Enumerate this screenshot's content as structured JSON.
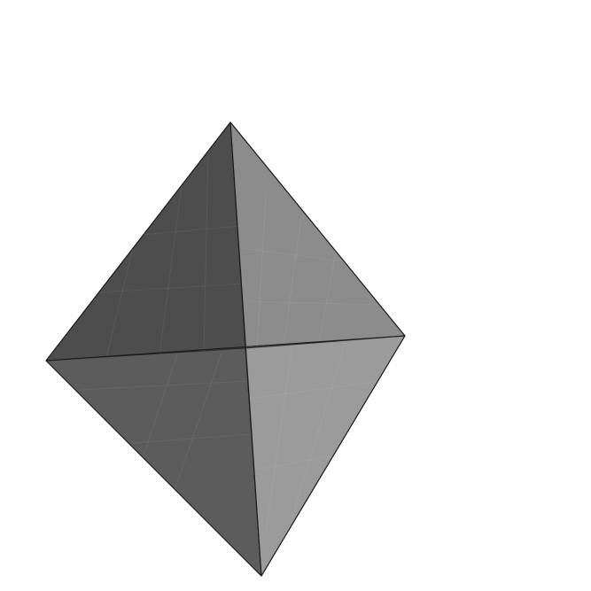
{
  "shape": "octahedron",
  "faces": [
    {
      "name": "upper-left-face",
      "color": "#4d4d4d"
    },
    {
      "name": "upper-right-face",
      "color": "#8c8c8c"
    },
    {
      "name": "lower-left-face",
      "color": "#5c5c5c"
    },
    {
      "name": "lower-right-face",
      "color": "#9b9b9b"
    }
  ],
  "edge_color": "#1a1a1a",
  "background": "#ffffff"
}
